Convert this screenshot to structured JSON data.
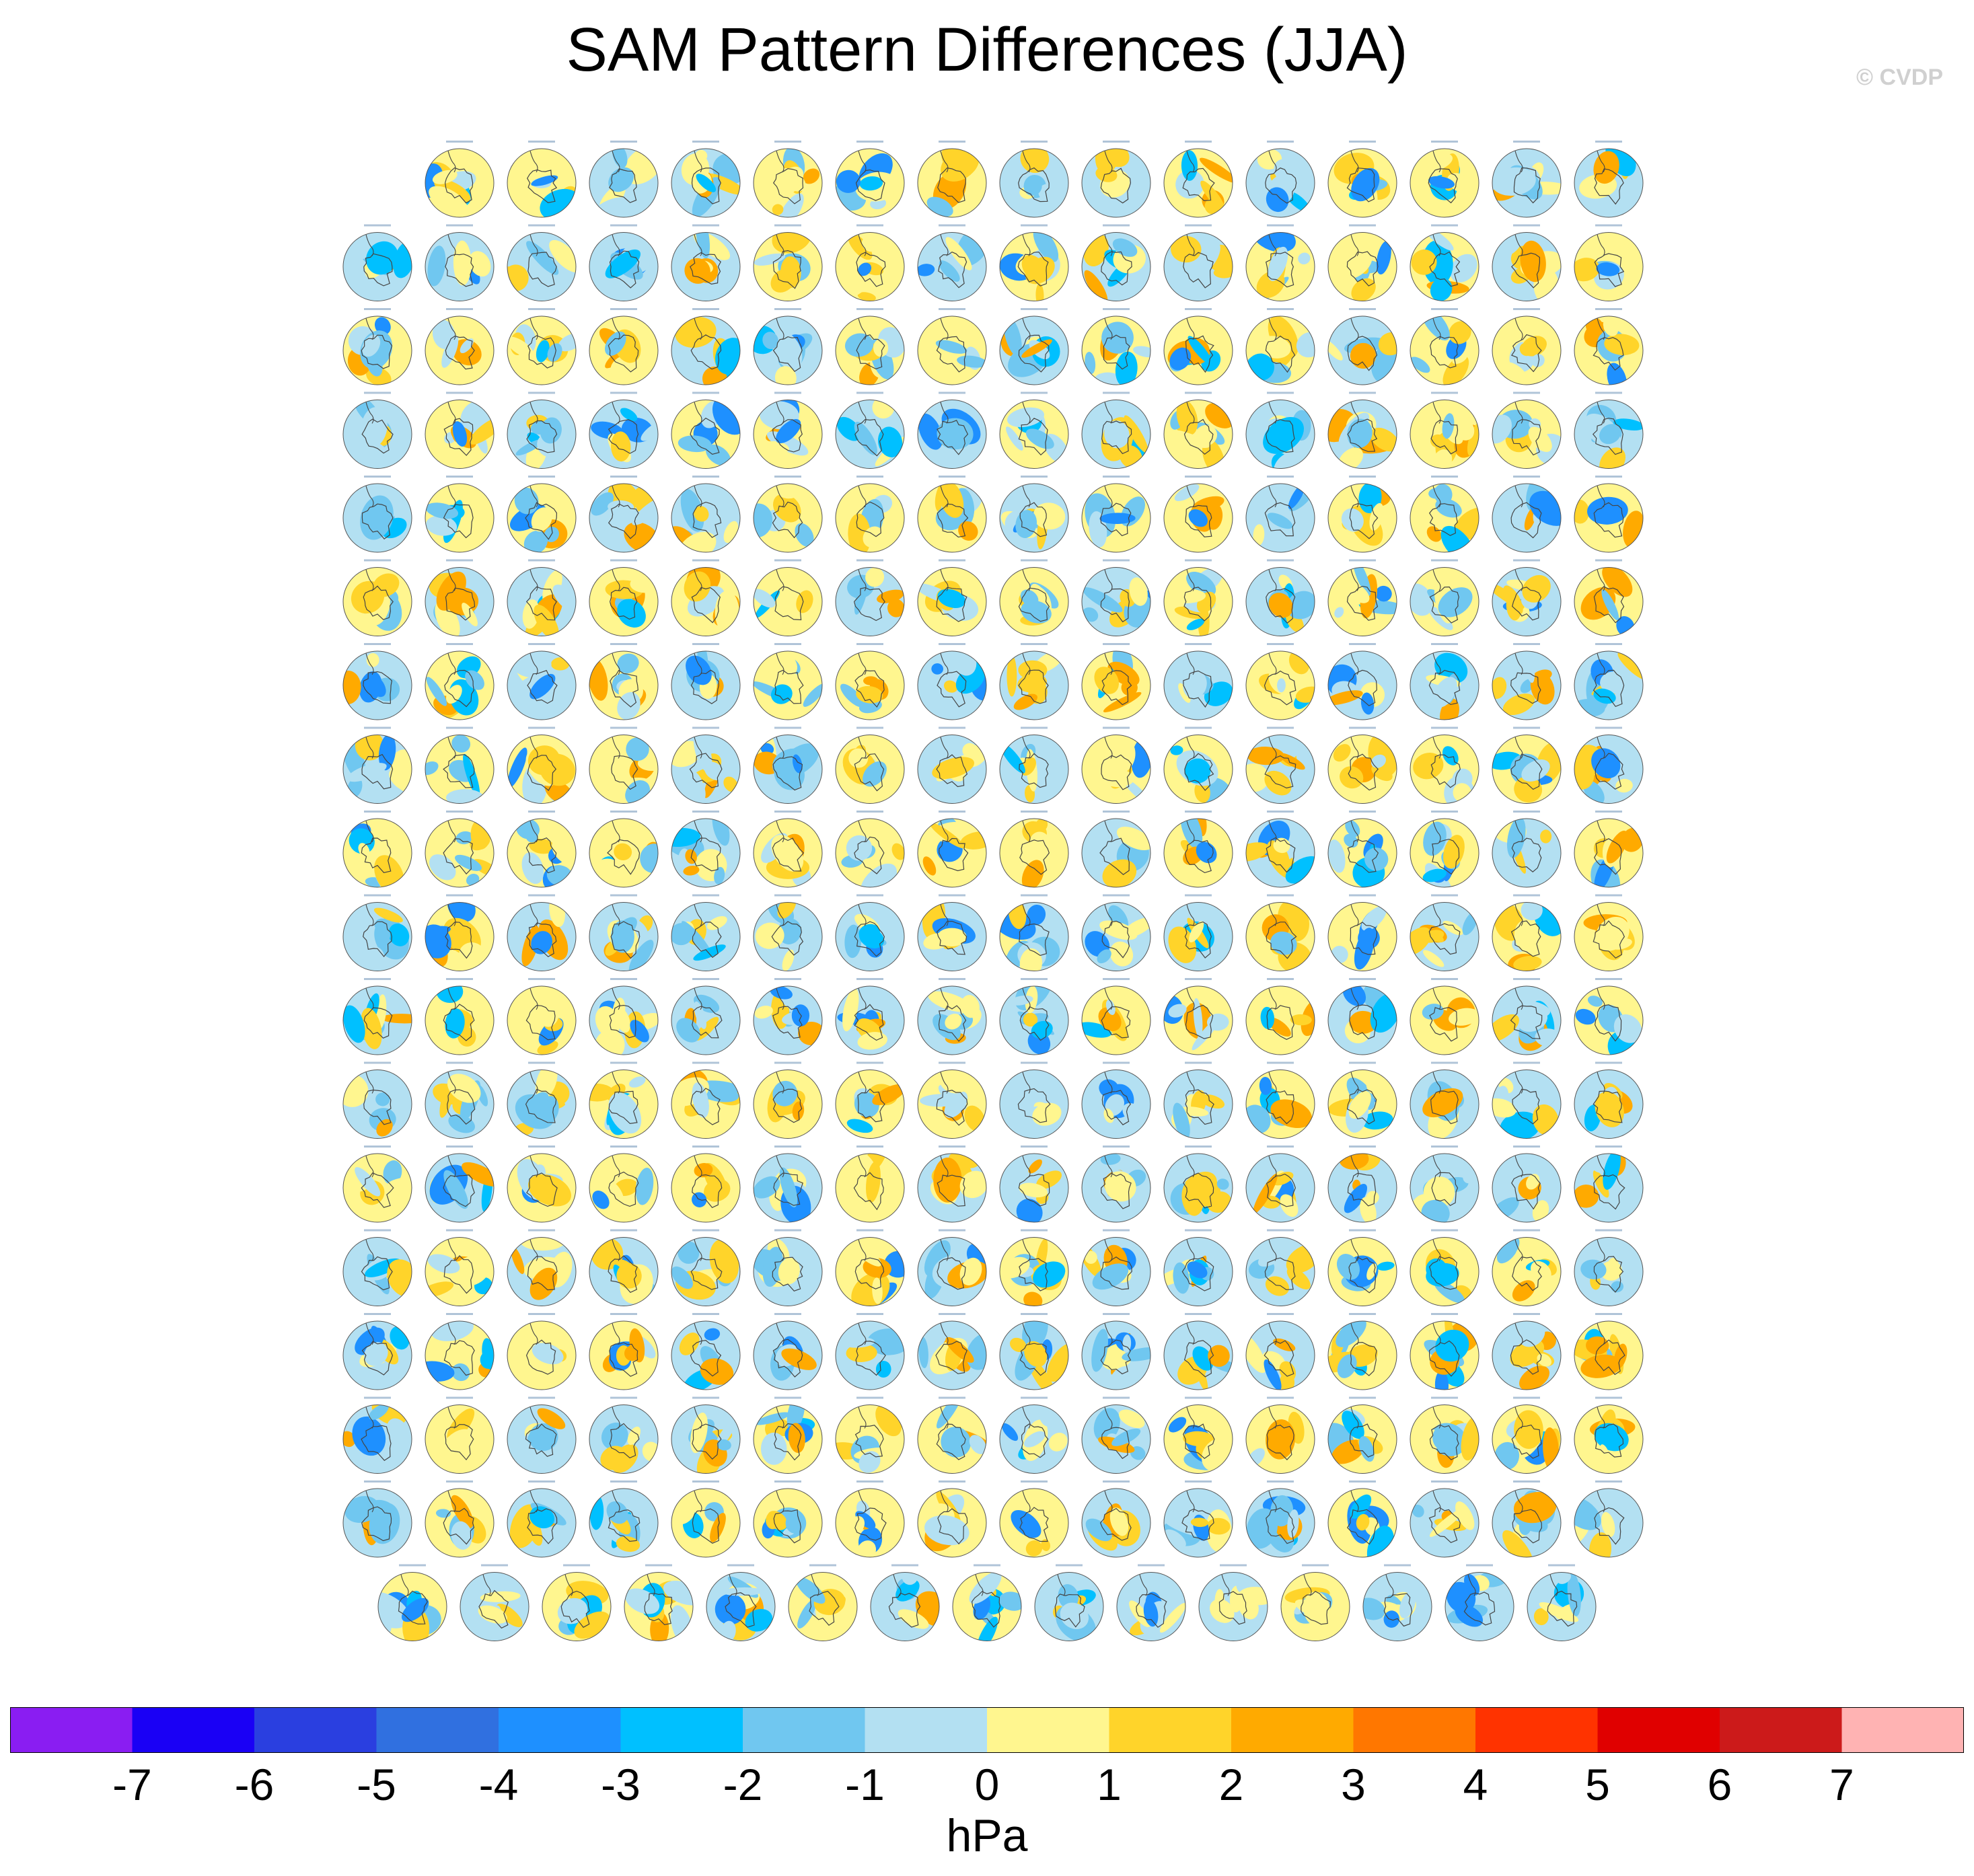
{
  "title": "SAM Pattern Differences (JJA)",
  "copyright": "© CVDP",
  "chart_data": {
    "type": "heatmap",
    "title": "SAM Pattern Differences (JJA)",
    "description_of_panels": "",
    "units": "hPa",
    "rows": [
      15,
      16,
      16,
      16,
      16,
      16,
      16,
      16,
      16,
      16,
      16,
      16,
      16,
      16,
      16,
      16,
      16,
      15
    ],
    "colorbar": {
      "tick_labels": [
        "-7",
        "-6",
        "-5",
        "-4",
        "-3",
        "-2",
        "-1",
        "0",
        "1",
        "2",
        "3",
        "4",
        "5",
        "6",
        "7"
      ],
      "colors": [
        "#8a1df2",
        "#1a00f5",
        "#2a3fe0",
        "#3070e0",
        "#1e90ff",
        "#00c0ff",
        "#70c7f0",
        "#b3e0f2",
        "#fff68f",
        "#ffd42a",
        "#ffaa00",
        "#ff7700",
        "#ff3300",
        "#e00000",
        "#cc1a1a",
        "#ffb3b3"
      ]
    }
  }
}
